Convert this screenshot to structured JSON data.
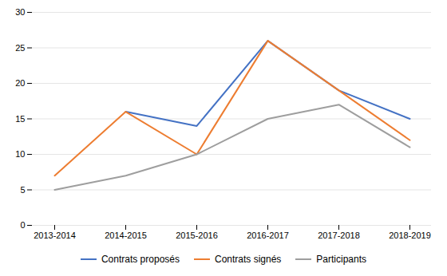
{
  "chart_data": {
    "type": "line",
    "categories": [
      "2013-2014",
      "2014-2015",
      "2015-2016",
      "2016-2017",
      "2017-2018",
      "2018-2019"
    ],
    "series": [
      {
        "name": "Contrats proposés",
        "color": "#4472C4",
        "values": [
          null,
          16,
          14,
          26,
          19,
          15
        ]
      },
      {
        "name": "Contrats signés",
        "color": "#ED7D31",
        "values": [
          7,
          16,
          10,
          26,
          19,
          12
        ]
      },
      {
        "name": "Participants",
        "color": "#9E9E9E",
        "values": [
          5,
          7,
          10,
          15,
          17,
          11
        ]
      }
    ],
    "ylim": [
      0,
      30
    ],
    "yticks": [
      0,
      5,
      10,
      15,
      20,
      25,
      30
    ],
    "grid": true,
    "legend": "bottom"
  }
}
